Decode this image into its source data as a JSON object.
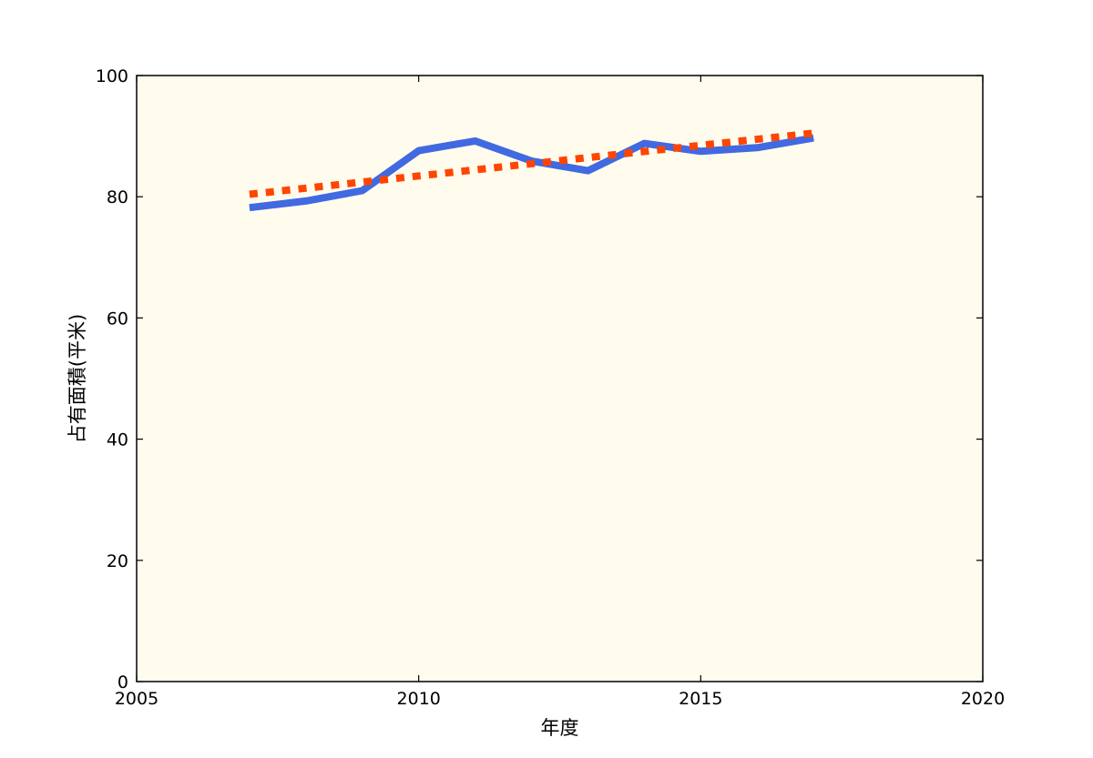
{
  "chart_data": {
    "type": "line",
    "title": "",
    "xlabel": "年度",
    "ylabel": "占有面積(平米)",
    "xlim": [
      2005,
      2020
    ],
    "ylim": [
      0,
      100
    ],
    "x_ticks": [
      2005,
      2010,
      2015,
      2020
    ],
    "y_ticks": [
      0,
      20,
      40,
      60,
      80,
      100
    ],
    "x_tick_labels": [
      "2005",
      "2010",
      "2015",
      "2020"
    ],
    "y_tick_labels": [
      "0",
      "20",
      "40",
      "60",
      "80",
      "100"
    ],
    "grid": false,
    "legend": "none",
    "plot_background": "#fffcee",
    "series": [
      {
        "style": "solid",
        "color": "#4169e1",
        "x": [
          2007,
          2008,
          2009,
          2010,
          2011,
          2012,
          2013,
          2014,
          2015,
          2016,
          2017
        ],
        "y": [
          78.2,
          79.3,
          81.0,
          87.6,
          89.2,
          85.9,
          84.3,
          88.8,
          87.5,
          88.1,
          89.7
        ]
      },
      {
        "style": "dotted",
        "color": "#ff4500",
        "x": [
          2007,
          2017
        ],
        "y": [
          80.4,
          90.5
        ]
      }
    ]
  }
}
